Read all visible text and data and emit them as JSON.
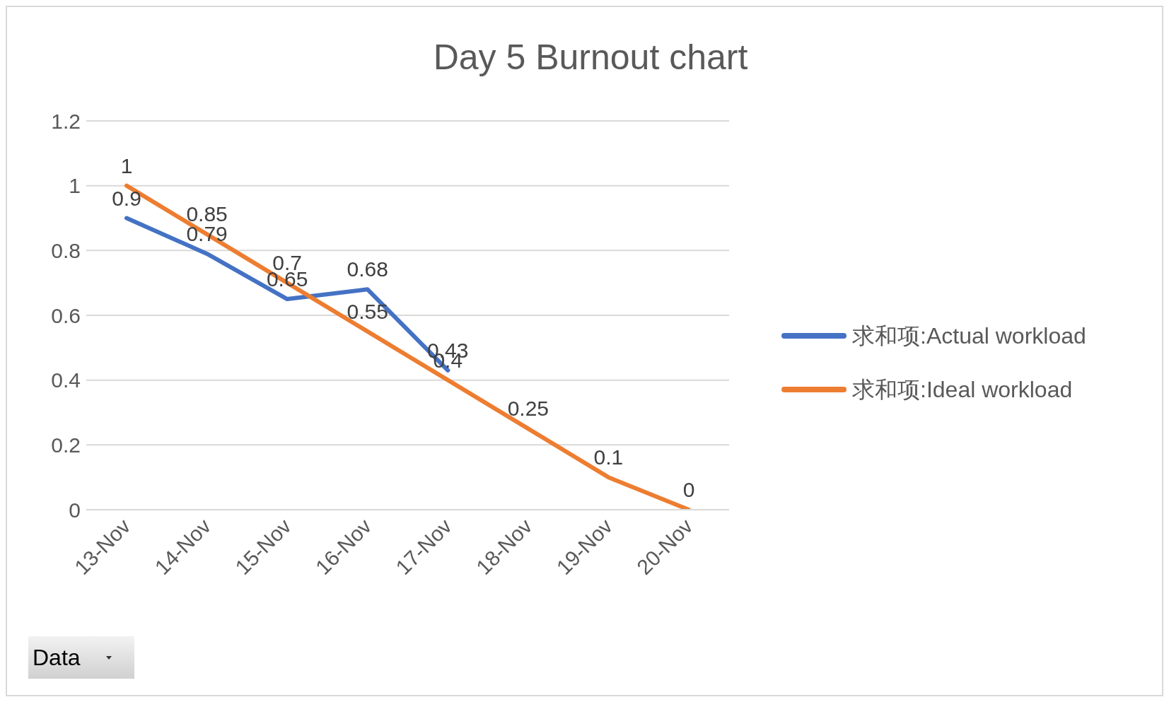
{
  "chart_data": {
    "type": "line",
    "title": "Day 5 Burnout chart",
    "categories": [
      "13-Nov",
      "14-Nov",
      "15-Nov",
      "16-Nov",
      "17-Nov",
      "18-Nov",
      "19-Nov",
      "20-Nov"
    ],
    "series": [
      {
        "name": "求和项:Actual workload",
        "color": "#4472c4",
        "values": [
          0.9,
          0.79,
          0.65,
          0.68,
          0.43,
          null,
          null,
          null
        ]
      },
      {
        "name": "求和项:Ideal workload",
        "color": "#ed7d31",
        "values": [
          1,
          0.85,
          0.7,
          0.55,
          0.4,
          0.25,
          0.1,
          0
        ]
      }
    ],
    "ylim": [
      0,
      1.2
    ],
    "yticks": [
      0,
      0.2,
      0.4,
      0.6,
      0.8,
      1,
      1.2
    ],
    "grid": "y",
    "legend": "right",
    "marker": "none",
    "line_style": "solid",
    "data_labels": true,
    "annotations": [
      "Data"
    ]
  }
}
